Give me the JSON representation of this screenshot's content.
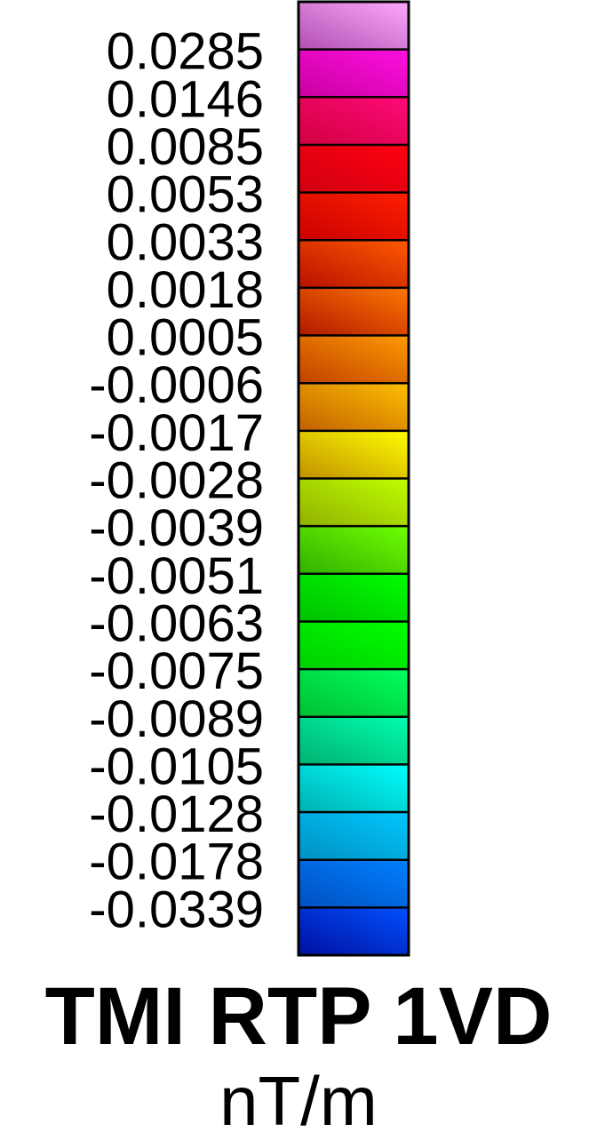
{
  "chart_data": {
    "type": "colorbar",
    "title": "TMI RTP 1VD",
    "units": "nT/m",
    "tick_labels": [
      "0.0285",
      "0.0146",
      "0.0085",
      "0.0053",
      "0.0033",
      "0.0018",
      "0.0005",
      "-0.0006",
      "-0.0017",
      "-0.0028",
      "-0.0039",
      "-0.0051",
      "-0.0063",
      "-0.0075",
      "-0.0089",
      "-0.0105",
      "-0.0128",
      "-0.0178",
      "-0.0339"
    ],
    "bins_top_to_bottom": [
      {
        "color_left": "#b050b0",
        "color_right": "#ffa8ff"
      },
      {
        "color_left": "#c800a0",
        "color_right": "#ff10e0"
      },
      {
        "color_left": "#d00040",
        "color_right": "#ff0a78"
      },
      {
        "color_left": "#d00010",
        "color_right": "#ff0010"
      },
      {
        "color_left": "#c80000",
        "color_right": "#ff2000"
      },
      {
        "color_left": "#b81000",
        "color_right": "#ff5a00"
      },
      {
        "color_left": "#b01800",
        "color_right": "#ff7800"
      },
      {
        "color_left": "#c04000",
        "color_right": "#ff9a00"
      },
      {
        "color_left": "#c06000",
        "color_right": "#ffc000"
      },
      {
        "color_left": "#c09000",
        "color_right": "#ffff00"
      },
      {
        "color_left": "#90b000",
        "color_right": "#c0ff00"
      },
      {
        "color_left": "#30b000",
        "color_right": "#70ff00"
      },
      {
        "color_left": "#00c000",
        "color_right": "#00ff00"
      },
      {
        "color_left": "#00d000",
        "color_right": "#00ff00"
      },
      {
        "color_left": "#00c030",
        "color_right": "#00ff60"
      },
      {
        "color_left": "#00b070",
        "color_right": "#00ffb0"
      },
      {
        "color_left": "#00b0b0",
        "color_right": "#00ffff"
      },
      {
        "color_left": "#0090c0",
        "color_right": "#00c8ff"
      },
      {
        "color_left": "#0050c0",
        "color_right": "#0080ff"
      },
      {
        "color_left": "#0010a0",
        "color_right": "#0050ff"
      }
    ],
    "frame_color": "#000000"
  }
}
